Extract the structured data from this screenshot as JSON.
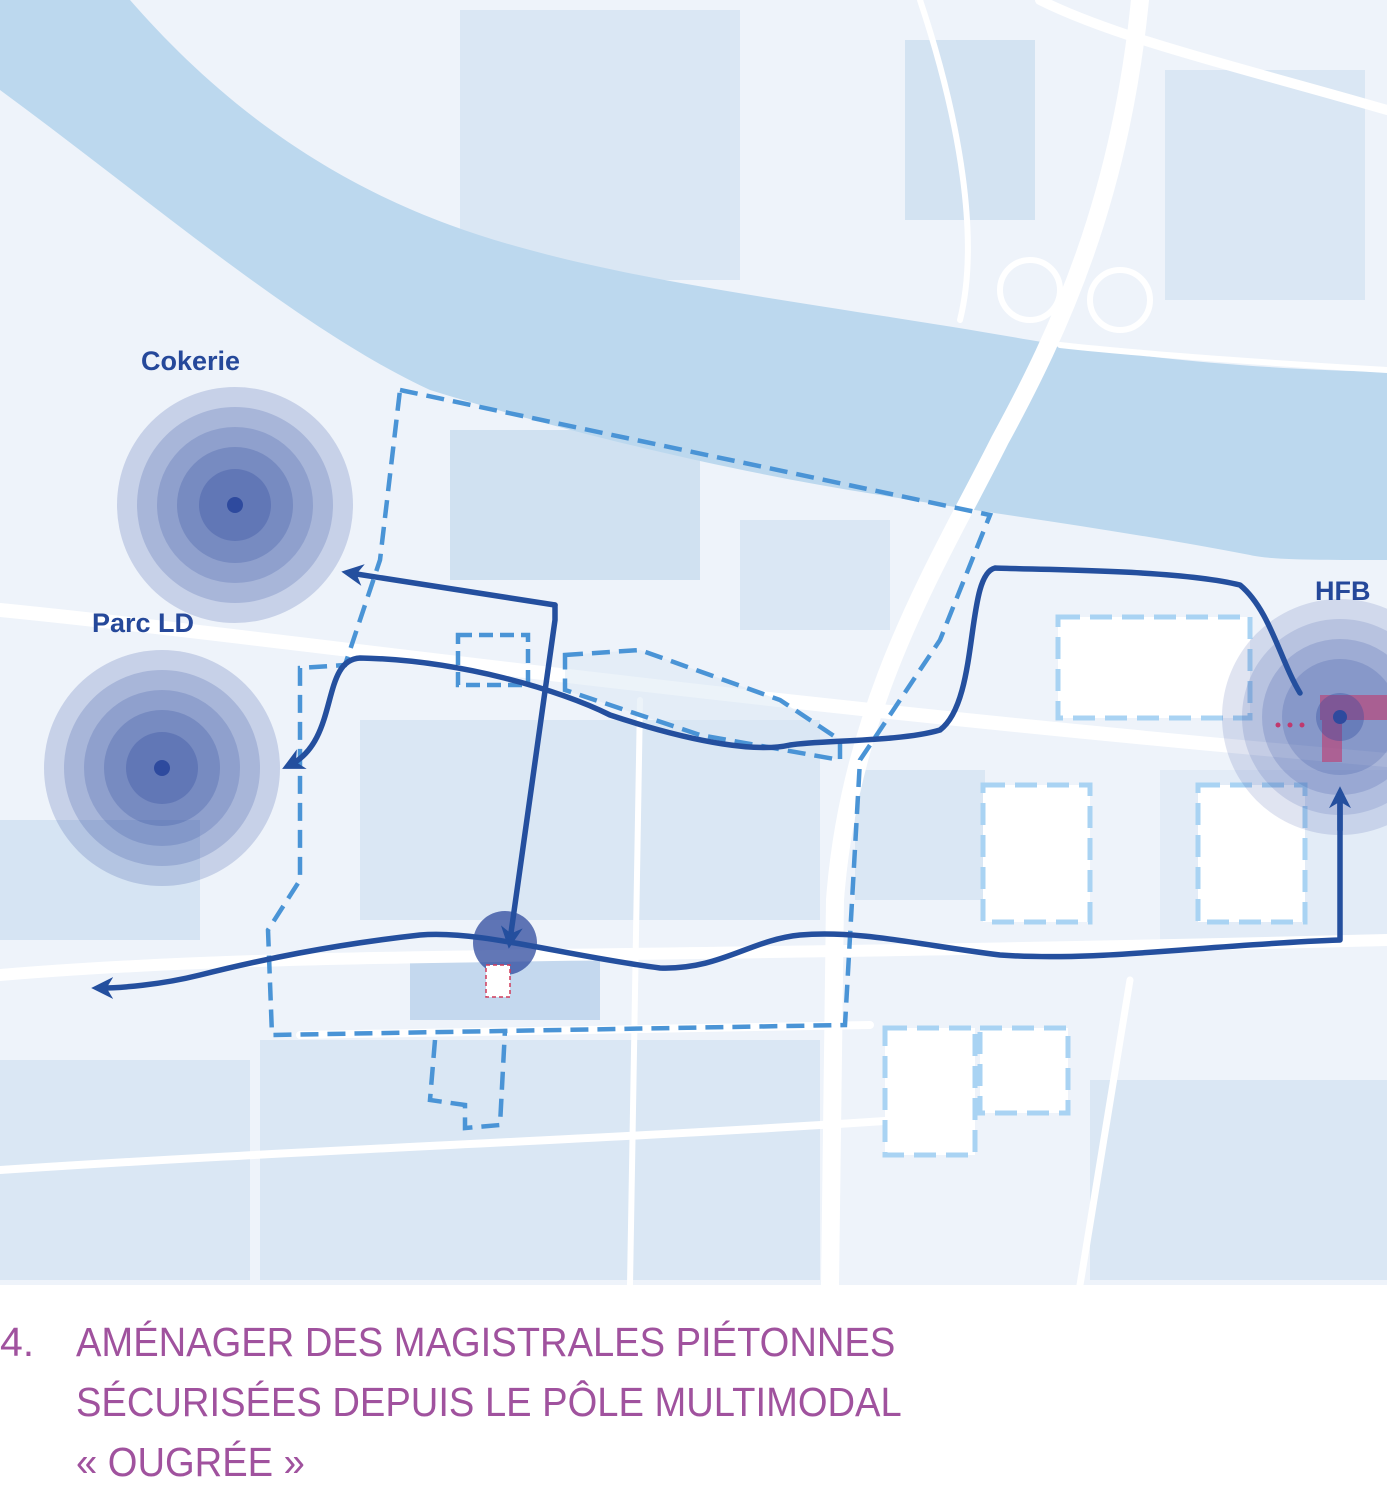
{
  "map": {
    "labels": {
      "cokerie": "Cokerie",
      "parc_ld": "Parc LD",
      "hfb": "HFB"
    },
    "colors": {
      "background": "#eef3fa",
      "river": "#bcd8ee",
      "roads": "#ffffff",
      "blocks": "#d6e4f3",
      "route": "#244f9e",
      "perimeter_dash": "#4a94d6",
      "project_dash": "#a9d3f3",
      "hotspot": "#2e4a9e",
      "label": "#25489a",
      "hfb_marker": "#c0396e"
    },
    "icons": [
      "arrow-head",
      "concentric-circle-hotspot",
      "station-circle"
    ]
  },
  "caption": {
    "number": "4.",
    "line1": "AMÉNAGER DES MAGISTRALES PIÉTONNES",
    "line2": "SÉCURISÉES DEPUIS LE PÔLE MULTIMODAL",
    "line3": "« OUGRÉE »",
    "color": "#a0529e"
  }
}
